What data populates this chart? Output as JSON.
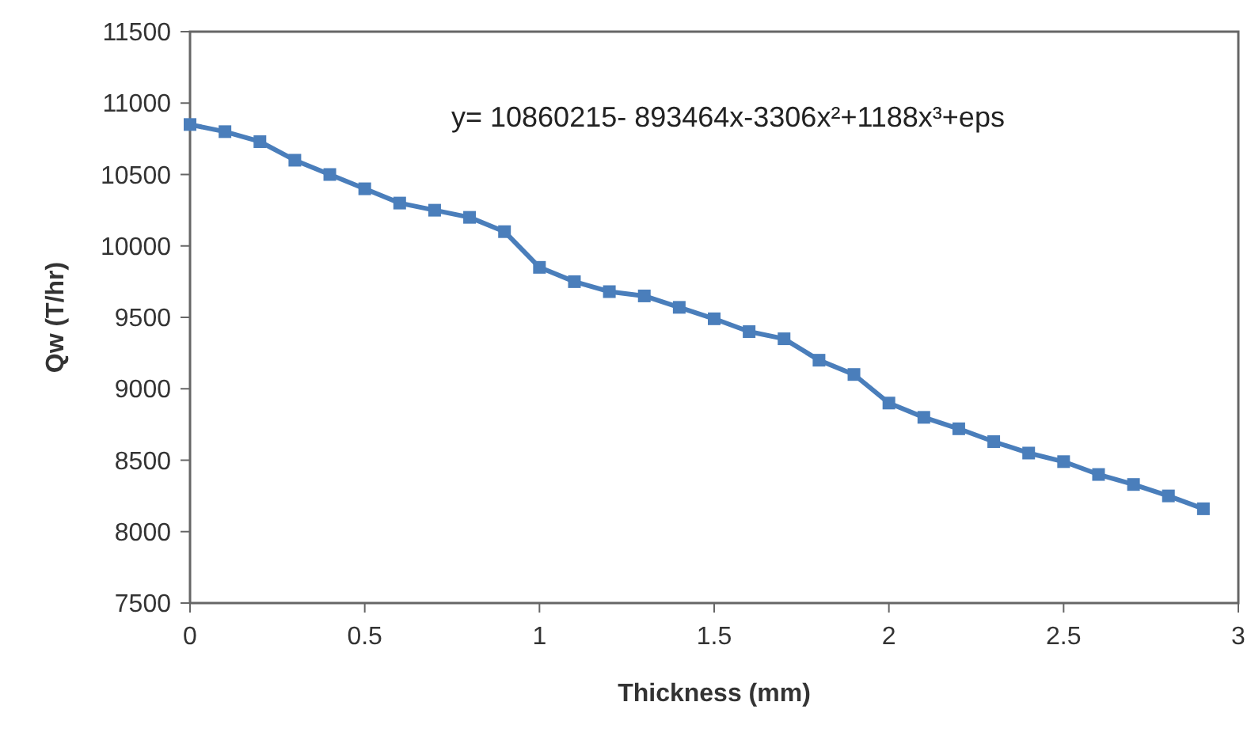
{
  "chart_data": {
    "type": "line",
    "xlabel": "Thickness  (mm)",
    "ylabel": "Qw (T/hr)",
    "annotations": [
      "y= 10860215-  893464x-3306x²+1188x³+eps"
    ],
    "x": [
      0,
      0.1,
      0.2,
      0.3,
      0.4,
      0.5,
      0.6,
      0.7,
      0.8,
      0.9,
      1.0,
      1.1,
      1.2,
      1.3,
      1.4,
      1.5,
      1.6,
      1.7,
      1.8,
      1.9,
      2.0,
      2.1,
      2.2,
      2.3,
      2.4,
      2.5,
      2.6,
      2.7,
      2.8,
      2.9
    ],
    "series": [
      {
        "color": "#4a7ebb",
        "values": [
          10850,
          10800,
          10730,
          10600,
          10500,
          10400,
          10300,
          10250,
          10200,
          10100,
          9850,
          9750,
          9680,
          9650,
          9570,
          9490,
          9400,
          9350,
          9200,
          9100,
          8900,
          8800,
          8720,
          8630,
          8550,
          8490,
          8400,
          8330,
          8250,
          8160
        ]
      }
    ],
    "xlim": [
      0,
      3
    ],
    "xticks": [
      0,
      0.5,
      1,
      1.5,
      2,
      2.5,
      3
    ],
    "ylim": [
      7500,
      11500
    ],
    "yticks": [
      7500,
      8000,
      8500,
      9000,
      9500,
      10000,
      10500,
      11000,
      11500
    ],
    "marker": "square",
    "line_style": "solid",
    "grid": false
  }
}
